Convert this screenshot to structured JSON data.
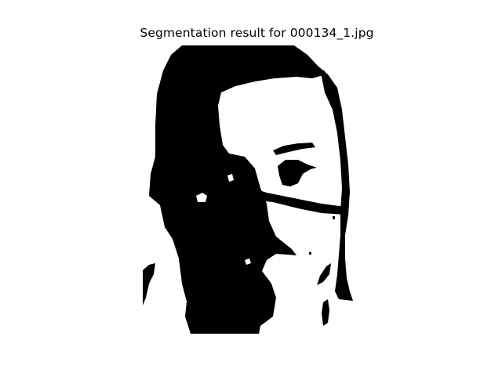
{
  "figure": {
    "title": "Segmentation result for 000134_1.jpg"
  },
  "mask": {
    "foreground_color": "#000000",
    "background_color": "#ffffff",
    "icon": "binary-segmentation-mask"
  }
}
